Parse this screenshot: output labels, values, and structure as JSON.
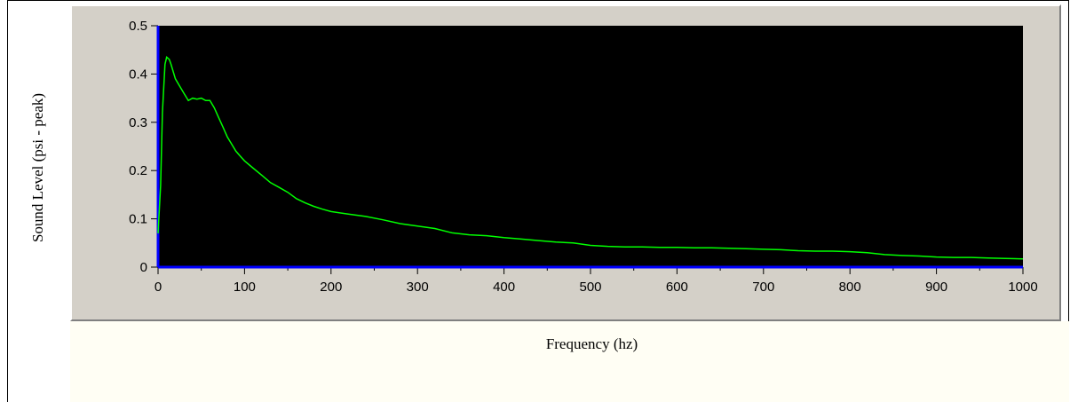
{
  "chart_data": {
    "type": "line",
    "xlabel": "Frequency (hz)",
    "ylabel": "Sound Level (psi - peak)",
    "xlim": [
      0,
      1000
    ],
    "ylim": [
      0,
      0.5
    ],
    "x_ticks": [
      "0",
      "100",
      "200",
      "300",
      "400",
      "500",
      "600",
      "700",
      "800",
      "900",
      "1000"
    ],
    "y_ticks": [
      "0",
      "0.1",
      "0.2",
      "0.3",
      "0.4",
      "0.5"
    ],
    "grid": false,
    "colors": {
      "plot_background": "#000000",
      "line": "#00ff00",
      "axes": "#0000ff",
      "panel": "#d4d0c8"
    },
    "series": [
      {
        "x": [
          0,
          3,
          5,
          8,
          10,
          13,
          15,
          20,
          25,
          30,
          35,
          40,
          45,
          50,
          55,
          60,
          65,
          70,
          75,
          80,
          85,
          90,
          95,
          100,
          110,
          120,
          130,
          140,
          150,
          160,
          170,
          180,
          190,
          200,
          220,
          240,
          260,
          280,
          300,
          320,
          340,
          360,
          380,
          400,
          420,
          440,
          460,
          480,
          500,
          520,
          540,
          560,
          580,
          600,
          620,
          640,
          660,
          680,
          700,
          720,
          740,
          760,
          780,
          800,
          820,
          840,
          860,
          880,
          900,
          920,
          940,
          960,
          980,
          1000
        ],
        "y": [
          0.07,
          0.17,
          0.32,
          0.42,
          0.435,
          0.43,
          0.42,
          0.39,
          0.375,
          0.36,
          0.345,
          0.35,
          0.348,
          0.35,
          0.345,
          0.345,
          0.33,
          0.31,
          0.29,
          0.27,
          0.255,
          0.24,
          0.23,
          0.22,
          0.205,
          0.19,
          0.175,
          0.165,
          0.155,
          0.142,
          0.133,
          0.126,
          0.12,
          0.115,
          0.11,
          0.105,
          0.098,
          0.09,
          0.085,
          0.08,
          0.071,
          0.067,
          0.065,
          0.061,
          0.058,
          0.055,
          0.052,
          0.05,
          0.045,
          0.043,
          0.042,
          0.042,
          0.041,
          0.041,
          0.04,
          0.04,
          0.039,
          0.038,
          0.037,
          0.036,
          0.034,
          0.033,
          0.033,
          0.032,
          0.03,
          0.026,
          0.024,
          0.023,
          0.021,
          0.02,
          0.02,
          0.019,
          0.018,
          0.017
        ]
      }
    ]
  }
}
